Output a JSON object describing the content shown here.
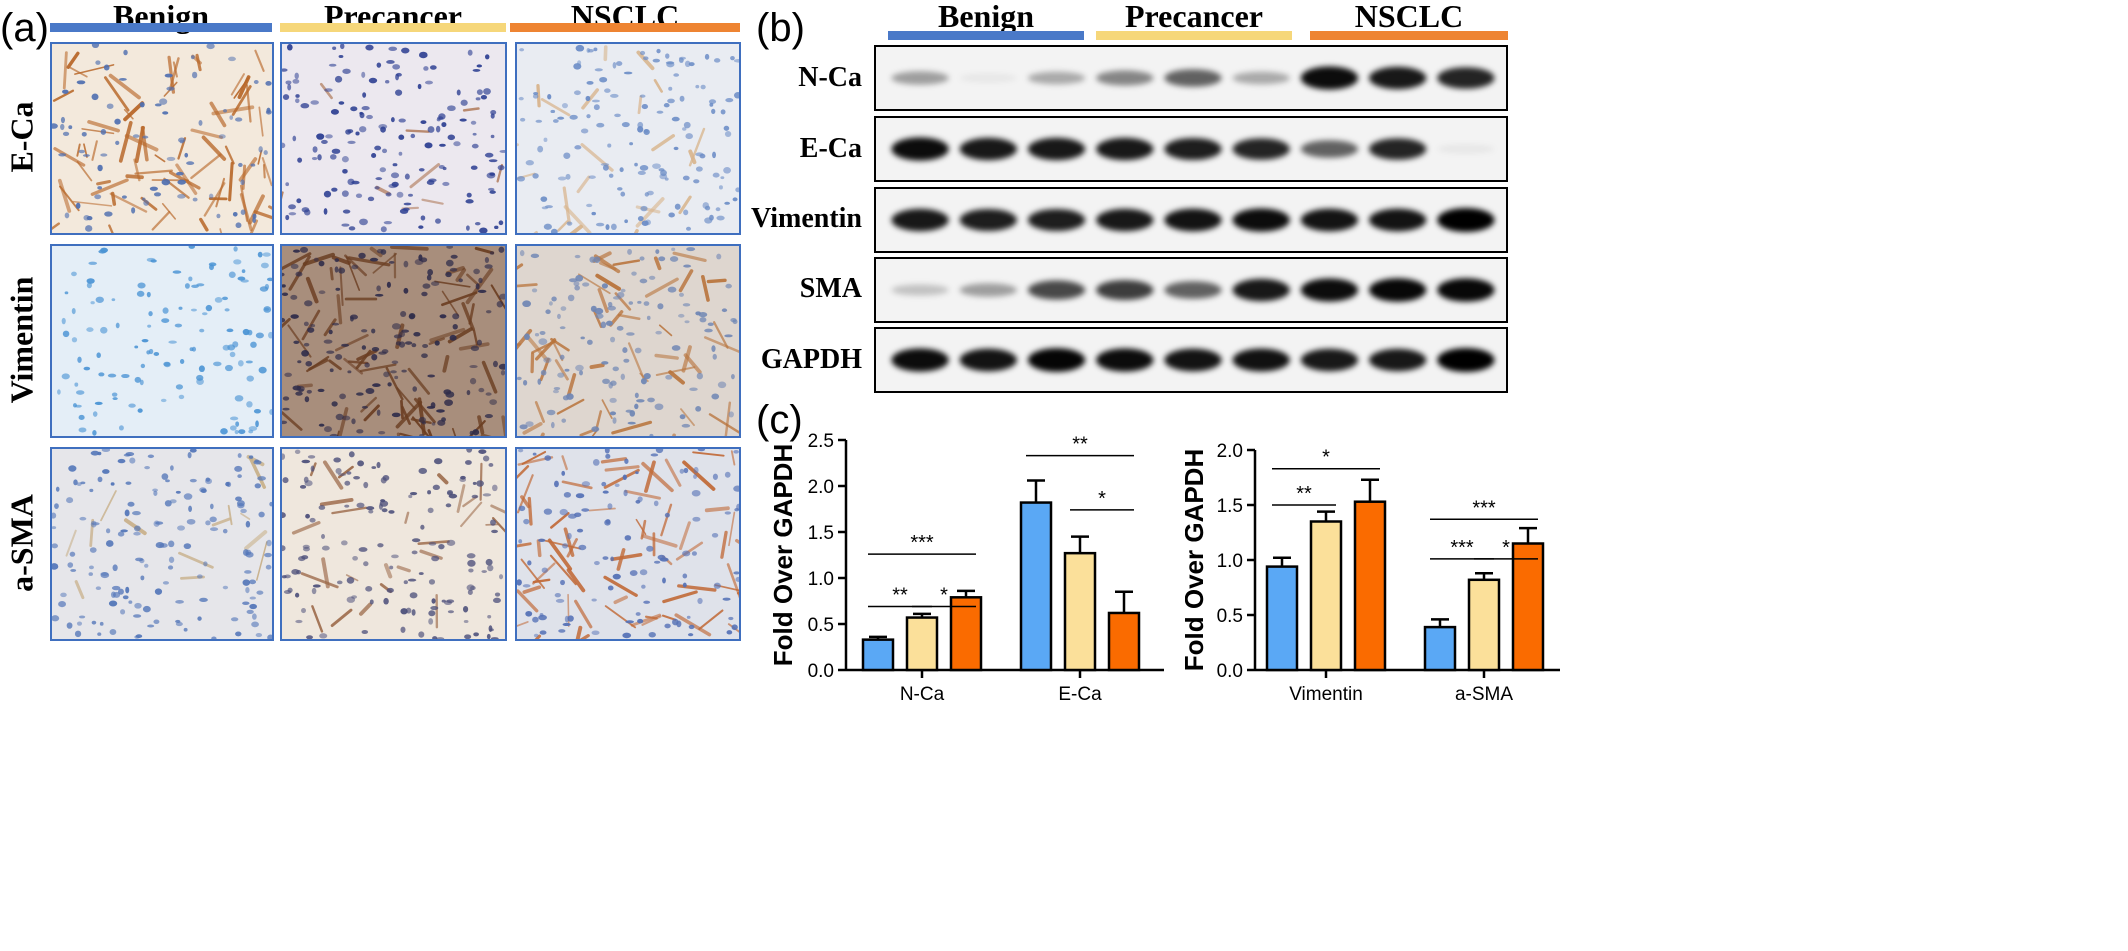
{
  "panels": {
    "a": "(a)",
    "b": "(b)",
    "c": "(c)"
  },
  "colors": {
    "benign": "#4a79c8",
    "precancer": "#f6d77a",
    "nsclc": "#ee8432",
    "bar_benign": "#5aa8f5",
    "bar_precancer": "#fbe09a",
    "bar_nsclc": "#fa6b00",
    "tile_border": "#3f6fbf"
  },
  "ihc": {
    "groups": [
      "Benign",
      "Precancer",
      "NSCLC"
    ],
    "rows": [
      "E-Ca",
      "Vimentin",
      "a-SMA"
    ]
  },
  "western": {
    "groups": [
      "Benign",
      "Precancer",
      "NSCLC"
    ],
    "rows": [
      "N-Ca",
      "E-Ca",
      "Vimentin",
      "SMA",
      "GAPDH"
    ],
    "band_intensity": [
      [
        0.35,
        0.05,
        0.3,
        0.45,
        0.6,
        0.3,
        0.95,
        0.9,
        0.85
      ],
      [
        0.95,
        0.9,
        0.9,
        0.9,
        0.88,
        0.85,
        0.6,
        0.85,
        0.05
      ],
      [
        0.9,
        0.88,
        0.88,
        0.9,
        0.92,
        0.95,
        0.92,
        0.92,
        1.0
      ],
      [
        0.2,
        0.35,
        0.7,
        0.75,
        0.6,
        0.9,
        0.95,
        0.97,
        0.97
      ],
      [
        0.95,
        0.92,
        0.98,
        0.95,
        0.92,
        0.93,
        0.9,
        0.9,
        1.0
      ]
    ]
  },
  "chart_data": [
    {
      "type": "bar",
      "categories": [
        "N-Ca",
        "E-Ca"
      ],
      "series": [
        {
          "values": [
            0.33,
            1.82
          ],
          "errors": [
            0.03,
            0.24
          ]
        },
        {
          "values": [
            0.57,
            1.27
          ],
          "errors": [
            0.04,
            0.18
          ]
        },
        {
          "values": [
            0.79,
            0.62
          ],
          "errors": [
            0.07,
            0.23
          ]
        }
      ],
      "ylabel": "Fold Over GAPDH",
      "ylim": [
        0,
        2.5
      ],
      "yticks": [
        "0.0",
        "0.5",
        "1.0",
        "1.5",
        "2.0",
        "2.5"
      ],
      "annotations": [
        {
          "category": 0,
          "from": 0,
          "to": 1,
          "level": 0.69,
          "label": "**"
        },
        {
          "category": 0,
          "from": 1,
          "to": 2,
          "level": 0.69,
          "label": "*"
        },
        {
          "category": 0,
          "from": 0,
          "to": 2,
          "level": 1.26,
          "label": "***"
        },
        {
          "category": 1,
          "from": 1,
          "to": 2,
          "level": 1.74,
          "label": "*"
        },
        {
          "category": 1,
          "from": 0,
          "to": 2,
          "level": 2.33,
          "label": "**"
        }
      ]
    },
    {
      "type": "bar",
      "categories": [
        "Vimentin",
        "a-SMA"
      ],
      "series": [
        {
          "values": [
            0.94,
            0.39
          ],
          "errors": [
            0.08,
            0.07
          ]
        },
        {
          "values": [
            1.35,
            0.82
          ],
          "errors": [
            0.09,
            0.06
          ]
        },
        {
          "values": [
            1.53,
            1.15
          ],
          "errors": [
            0.2,
            0.14
          ]
        }
      ],
      "ylabel": "Fold Over GAPDH",
      "ylim": [
        0,
        2.0
      ],
      "yticks": [
        "0.0",
        "0.5",
        "1.0",
        "1.5",
        "2.0"
      ],
      "annotations": [
        {
          "category": 0,
          "from": 0,
          "to": 1,
          "level": 1.5,
          "label": "**"
        },
        {
          "category": 0,
          "from": 0,
          "to": 2,
          "level": 1.83,
          "label": "*"
        },
        {
          "category": 1,
          "from": 0,
          "to": 1,
          "level": 1.01,
          "label": "***"
        },
        {
          "category": 1,
          "from": 1,
          "to": 2,
          "level": 1.01,
          "label": "*"
        },
        {
          "category": 1,
          "from": 0,
          "to": 2,
          "level": 1.37,
          "label": "***"
        }
      ]
    }
  ]
}
